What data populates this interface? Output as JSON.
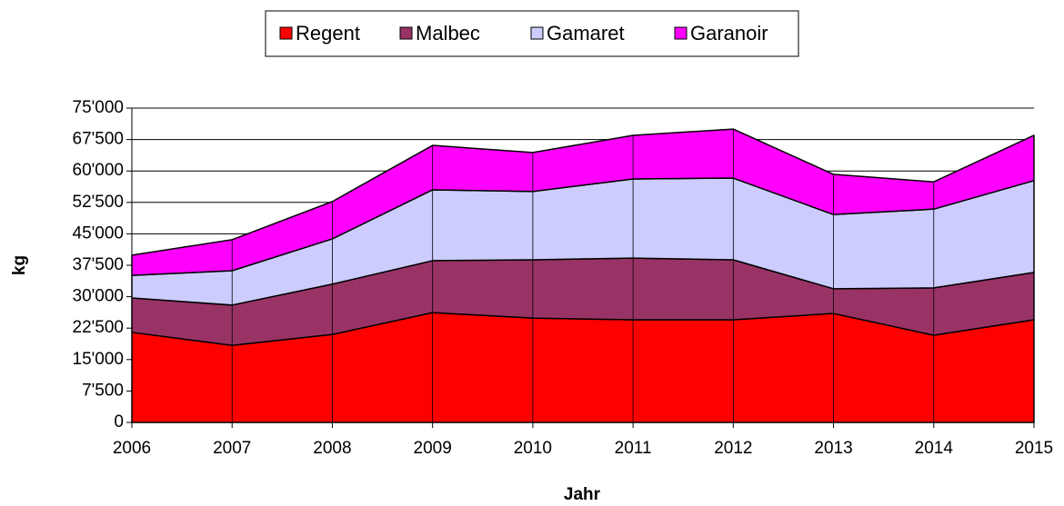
{
  "chart_data": {
    "type": "stacked_area",
    "x": [
      2006,
      2007,
      2008,
      2009,
      2010,
      2011,
      2012,
      2013,
      2014,
      2015
    ],
    "xlim": [
      2006,
      2015
    ],
    "xticks": [
      2006,
      2007,
      2008,
      2009,
      2010,
      2011,
      2012,
      2013,
      2014,
      2015
    ],
    "series": [
      {
        "name": "Regent",
        "color": "#ff0000",
        "values": [
          21500,
          18400,
          21000,
          26200,
          24900,
          24500,
          24500,
          26000,
          20800,
          24500
        ]
      },
      {
        "name": "Malbec",
        "color": "#993366",
        "values": [
          8200,
          9600,
          12000,
          12400,
          13900,
          14700,
          14300,
          5900,
          11300,
          11300
        ]
      },
      {
        "name": "Gamaret",
        "color": "#ccccff",
        "values": [
          5400,
          8200,
          10800,
          16900,
          16300,
          18900,
          19500,
          17700,
          18800,
          21900
        ]
      },
      {
        "name": "Garanoir",
        "color": "#ff00ff",
        "values": [
          4800,
          7400,
          8900,
          10600,
          9300,
          10400,
          11700,
          9600,
          6500,
          10800
        ]
      }
    ],
    "ylim": [
      0,
      75000
    ],
    "yticks": [
      0,
      {
        "value": 7500,
        "label": "7'500"
      },
      {
        "value": 15000,
        "label": "15'000"
      },
      {
        "value": 22500,
        "label": "22'500"
      },
      {
        "value": 30000,
        "label": "30'000"
      },
      {
        "value": 37500,
        "label": "37'500"
      },
      {
        "value": 45000,
        "label": "45'000"
      },
      {
        "value": 52500,
        "label": "52'500"
      },
      {
        "value": 60000,
        "label": "60'000"
      },
      {
        "value": 67500,
        "label": "67'500"
      },
      {
        "value": 75000,
        "label": "75'000"
      }
    ],
    "xlabel": "Jahr",
    "ylabel": "kg",
    "grid": true,
    "legend": "top"
  }
}
